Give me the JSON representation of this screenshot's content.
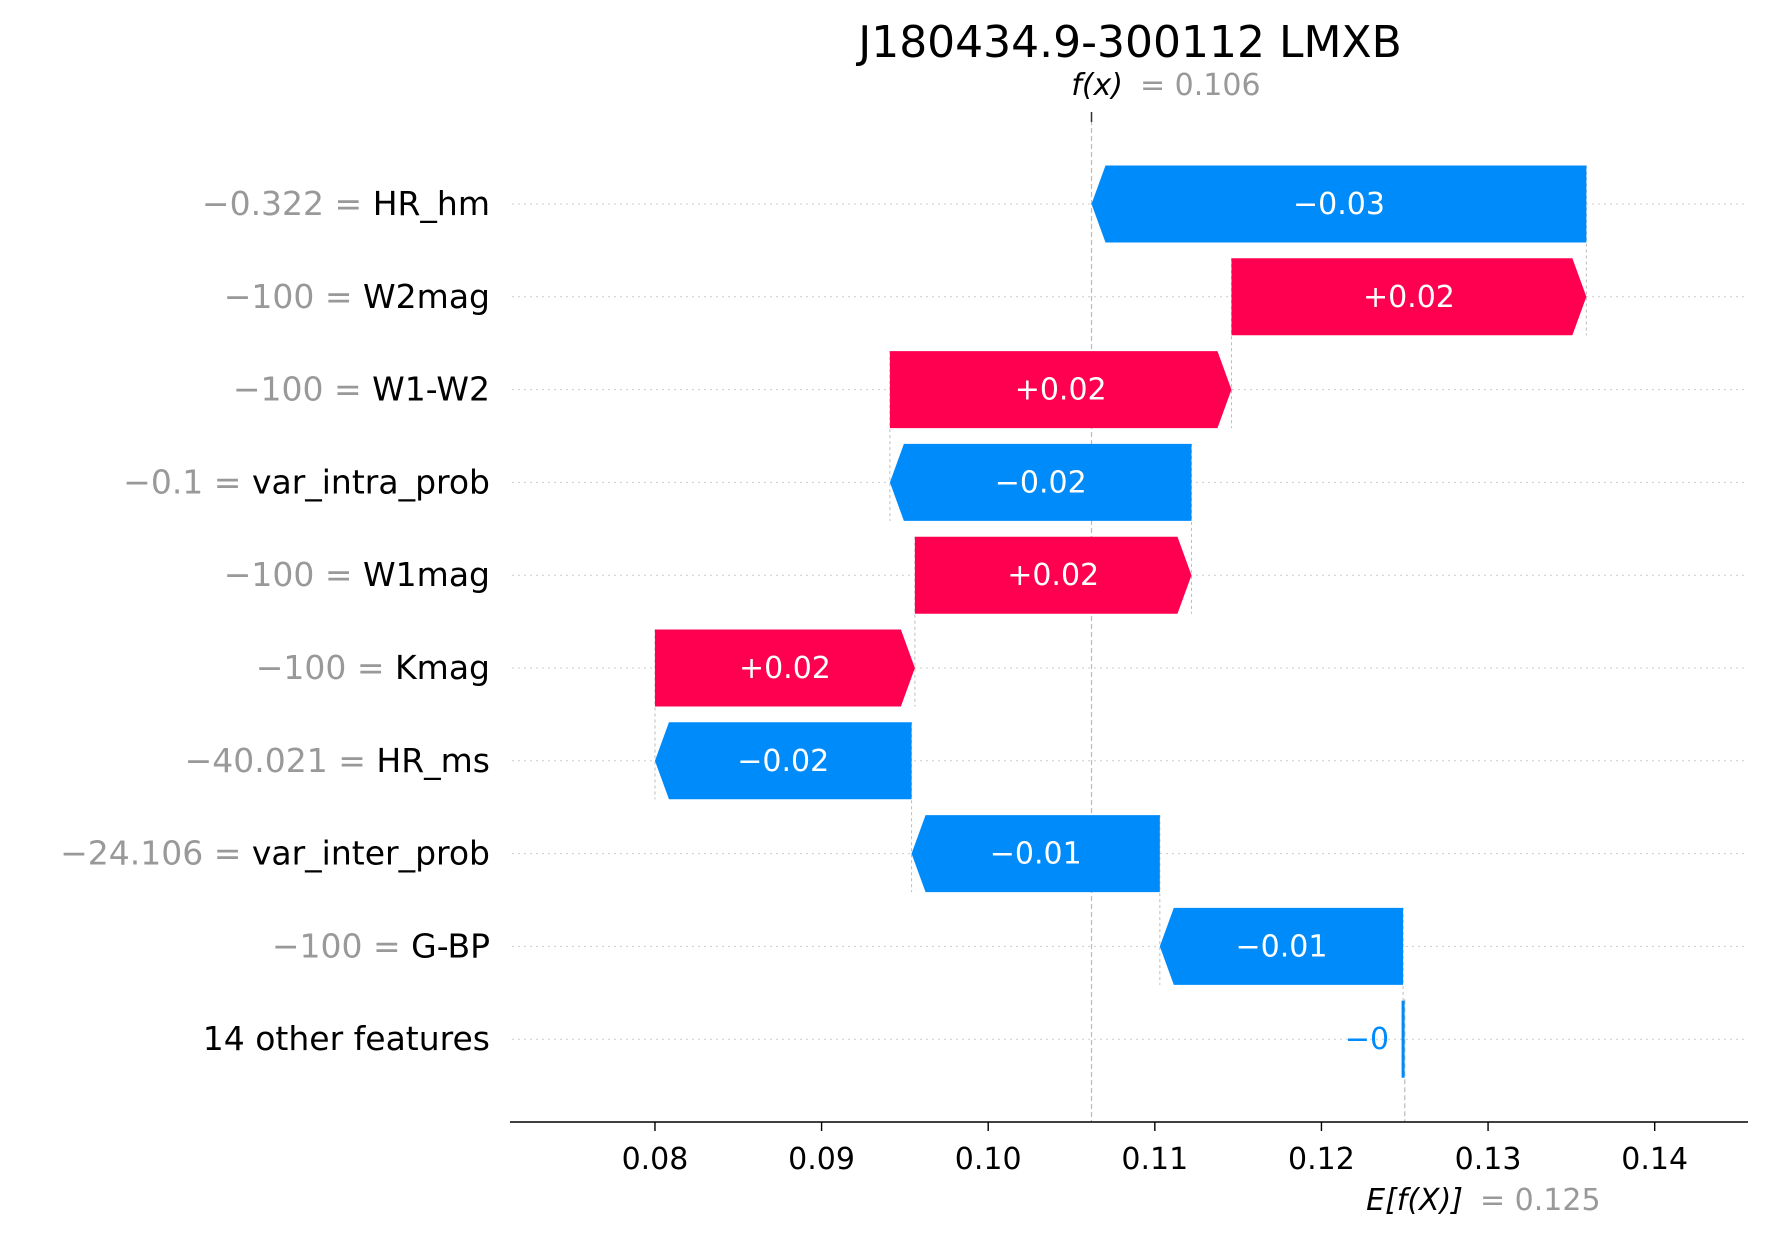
{
  "chart_data": {
    "type": "waterfall",
    "title": "J180434.9-300112 LMXB",
    "fx": {
      "label": "f(x)",
      "value_text": "= 0.106",
      "value": 0.106
    },
    "efx": {
      "label": "E[f(X)]",
      "value_text": "= 0.125",
      "value": 0.125
    },
    "xlim": [
      0.0713,
      0.1456
    ],
    "xticks": [
      0.08,
      0.09,
      0.1,
      0.11,
      0.12,
      0.13,
      0.14
    ],
    "xtick_labels": [
      "0.08",
      "0.09",
      "0.10",
      "0.11",
      "0.12",
      "0.13",
      "0.14"
    ],
    "grid": "horizontal dotted",
    "colors": {
      "positive": "#ff0051",
      "negative": "#008bfb",
      "muted": "#999999",
      "text": "#000000"
    },
    "features": [
      {
        "value_text": "−0.322",
        "name": "HR_hm",
        "contribution": -0.0297,
        "label": "−0.03"
      },
      {
        "value_text": "−100",
        "name": "W2mag",
        "contribution": 0.0213,
        "label": "+0.02"
      },
      {
        "value_text": "−100",
        "name": "W1-W2",
        "contribution": 0.0205,
        "label": "+0.02"
      },
      {
        "value_text": "−0.1",
        "name": "var_intra_prob",
        "contribution": -0.0181,
        "label": "−0.02"
      },
      {
        "value_text": "−100",
        "name": "W1mag",
        "contribution": 0.0166,
        "label": "+0.02"
      },
      {
        "value_text": "−100",
        "name": "Kmag",
        "contribution": 0.0156,
        "label": "+0.02"
      },
      {
        "value_text": "−40.021",
        "name": "HR_ms",
        "contribution": -0.0154,
        "label": "−0.02"
      },
      {
        "value_text": "−24.106",
        "name": "var_inter_prob",
        "contribution": -0.0149,
        "label": "−0.01"
      },
      {
        "value_text": "−100",
        "name": "G-BP",
        "contribution": -0.0146,
        "label": "−0.01"
      },
      {
        "value_text": "",
        "name": "14 other features",
        "contribution": -0.0001,
        "label": "−0"
      }
    ]
  }
}
